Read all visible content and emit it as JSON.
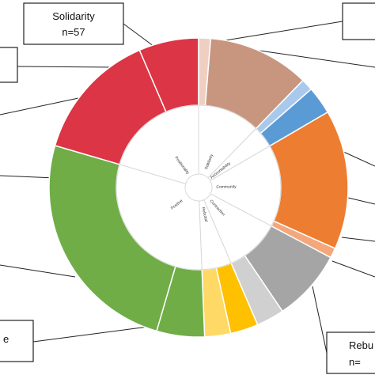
{
  "chart_data": {
    "type": "sunburst",
    "inner_ring": [
      {
        "label": "Solidarity",
        "value": 57,
        "color": "#ffffff"
      },
      {
        "label": "Accountability",
        "value": 20,
        "color": "#ffffff"
      },
      {
        "label": "Community",
        "value": 75,
        "color": "#ffffff"
      },
      {
        "label": "Contraction",
        "value": 50,
        "color": "#ffffff"
      },
      {
        "label": "Rebuttal",
        "value": 27,
        "color": "#ffffff"
      },
      {
        "label": "Positive",
        "value": 140,
        "color": "#ffffff"
      },
      {
        "label": "Positionality",
        "value": 95,
        "color": "#ffffff"
      }
    ],
    "outer_ring": [
      {
        "parent": "Accountability",
        "value": 6,
        "color": "#a9c9ec"
      },
      {
        "parent": "Accountability",
        "value": 14,
        "color": "#5b9bd5"
      },
      {
        "parent": "Community",
        "value": 70,
        "color": "#ed7d31"
      },
      {
        "parent": "Community",
        "value": 5,
        "color": "#f4a77b"
      },
      {
        "parent": "Contraction",
        "value": 36,
        "color": "#a5a5a5"
      },
      {
        "parent": "Contraction",
        "value": 14,
        "color": "#d0d0d0"
      },
      {
        "parent": "Rebuttal",
        "value": 14,
        "color": "#ffc000"
      },
      {
        "parent": "Rebuttal",
        "value": 13,
        "color": "#ffd966"
      },
      {
        "parent": "Positive",
        "value": 24,
        "color": "#70ad47"
      },
      {
        "parent": "Positive",
        "value": 116,
        "color": "#70ad47"
      },
      {
        "parent": "Positionality",
        "value": 65,
        "color": "#dc3545"
      },
      {
        "parent": "Positionality",
        "value": 30,
        "color": "#dc3545"
      },
      {
        "parent": "Solidarity",
        "value": 6,
        "color": "#f0cfc3"
      },
      {
        "parent": "Solidarity",
        "value": 51,
        "color": "#c8957f"
      }
    ],
    "callouts": [
      {
        "line1": "Solidarity",
        "line2": "n=57"
      },
      {
        "line1": "Rebu",
        "line2": "n="
      },
      {
        "line1": "e",
        "line2": ""
      },
      {
        "line1": "",
        "line2": ""
      },
      {
        "line1": "",
        "line2": ""
      }
    ]
  }
}
